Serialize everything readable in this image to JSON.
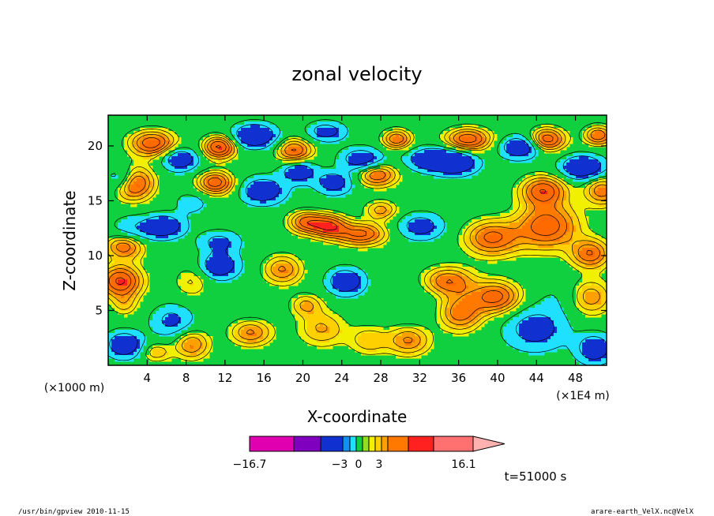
{
  "chart_data": {
    "type": "heatmap",
    "title": "zonal velocity",
    "xlabel": "X-coordinate",
    "ylabel": "Z-coordinate",
    "x_unit": "(×1E4 m)",
    "y_unit": "(×1000 m)",
    "xlim": [
      0,
      51.2
    ],
    "ylim": [
      0,
      22.8
    ],
    "x_ticks": [
      4,
      8,
      12,
      16,
      20,
      24,
      28,
      32,
      36,
      40,
      44,
      48
    ],
    "y_ticks": [
      5,
      10,
      15,
      20
    ],
    "x_tick_labels": [
      "4",
      "8",
      "12",
      "16",
      "20",
      "24",
      "28",
      "32",
      "36",
      "40",
      "44",
      "48"
    ],
    "y_tick_labels": [
      "5",
      "10",
      "15",
      "20"
    ],
    "colorbar": {
      "min_label": "−16.7",
      "max_label": "16.1",
      "center_labels": [
        "−3",
        "0",
        "3"
      ],
      "min": -16.7,
      "max": 16.1,
      "colors": [
        "#e000b0",
        "#8000c0",
        "#1030d0",
        "#1090f0",
        "#20e0ff",
        "#10d040",
        "#90e020",
        "#f0f000",
        "#ffd000",
        "#ffa000",
        "#ff7800",
        "#ff2020",
        "#ff7070",
        "#ffb0b0"
      ]
    },
    "time_label": "t=51000 s",
    "palette": [
      "#1030d0",
      "#20e0ff",
      "#10d040",
      "#f0f000",
      "#ffd000",
      "#ffa000",
      "#ff7800",
      "#ff2020"
    ],
    "field_levels": [
      -12,
      -6,
      -2,
      0,
      2,
      4,
      6,
      9
    ]
  },
  "footer": {
    "left": "/usr/bin/gpview   2010-11-15",
    "right": "arare-earth_VelX.nc@VelX"
  }
}
